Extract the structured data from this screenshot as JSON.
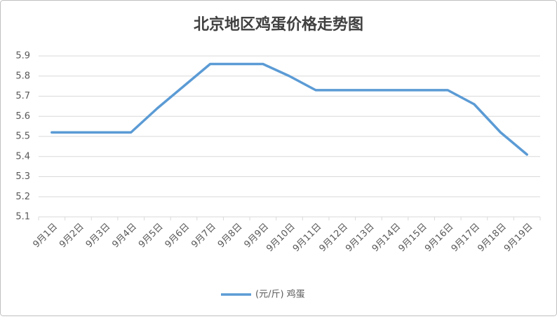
{
  "chart_data": {
    "type": "line",
    "title": "北京地区鸡蛋价格走势图",
    "categories": [
      "9月1日",
      "9月2日",
      "9月3日",
      "9月4日",
      "9月5日",
      "9月6日",
      "9月7日",
      "9月8日",
      "9月9日",
      "9月10日",
      "9月11日",
      "9月12日",
      "9月13日",
      "9月14日",
      "9月15日",
      "9月16日",
      "9月17日",
      "9月18日",
      "9月19日"
    ],
    "series": [
      {
        "name": "(元/斤) 鸡蛋",
        "color": "#5b9bd5",
        "values": [
          5.52,
          5.52,
          5.52,
          5.52,
          5.64,
          5.75,
          5.86,
          5.86,
          5.86,
          5.8,
          5.73,
          5.73,
          5.73,
          5.73,
          5.73,
          5.73,
          5.66,
          5.52,
          5.41
        ]
      }
    ],
    "ylim": [
      5.1,
      5.9
    ],
    "yticks": [
      5.1,
      5.2,
      5.3,
      5.4,
      5.5,
      5.6,
      5.7,
      5.8,
      5.9
    ],
    "grid": true,
    "legend": "bottom"
  }
}
